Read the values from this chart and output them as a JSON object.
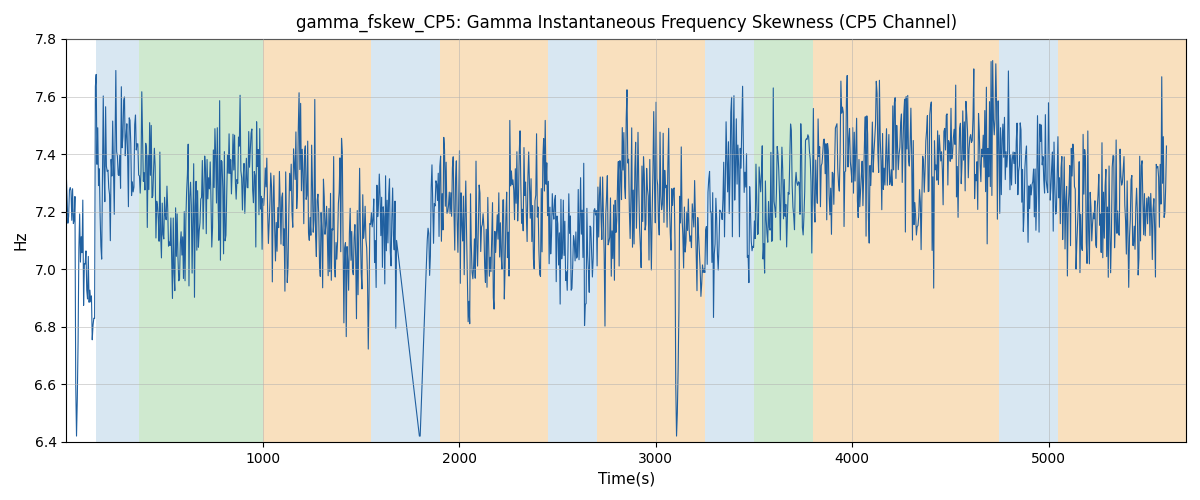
{
  "title": "gamma_fskew_CP5: Gamma Instantaneous Frequency Skewness (CP5 Channel)",
  "xlabel": "Time(s)",
  "ylabel": "Hz",
  "ylim": [
    6.4,
    7.8
  ],
  "xlim": [
    0,
    5700
  ],
  "line_color": "#2060a0",
  "line_width": 0.8,
  "bg_regions": [
    {
      "xmin": 150,
      "xmax": 370,
      "color": "#b8d4e8",
      "alpha": 0.55
    },
    {
      "xmin": 370,
      "xmax": 1000,
      "color": "#a8d8a8",
      "alpha": 0.55
    },
    {
      "xmin": 1000,
      "xmax": 1550,
      "color": "#f5c88a",
      "alpha": 0.55
    },
    {
      "xmin": 1550,
      "xmax": 1900,
      "color": "#b8d4e8",
      "alpha": 0.55
    },
    {
      "xmin": 1900,
      "xmax": 2450,
      "color": "#f5c88a",
      "alpha": 0.55
    },
    {
      "xmin": 2450,
      "xmax": 2700,
      "color": "#b8d4e8",
      "alpha": 0.55
    },
    {
      "xmin": 2700,
      "xmax": 3250,
      "color": "#f5c88a",
      "alpha": 0.55
    },
    {
      "xmin": 3250,
      "xmax": 3500,
      "color": "#b8d4e8",
      "alpha": 0.55
    },
    {
      "xmin": 3500,
      "xmax": 3800,
      "color": "#a8d8a8",
      "alpha": 0.55
    },
    {
      "xmin": 3800,
      "xmax": 4750,
      "color": "#f5c88a",
      "alpha": 0.55
    },
    {
      "xmin": 4750,
      "xmax": 5050,
      "color": "#b8d4e8",
      "alpha": 0.55
    },
    {
      "xmin": 5050,
      "xmax": 5700,
      "color": "#f5c88a",
      "alpha": 0.55
    }
  ],
  "grid_color": "#b0b0b0",
  "grid_alpha": 0.6,
  "fig_facecolor": "#ffffff",
  "title_fontsize": 12,
  "label_fontsize": 11,
  "tick_fontsize": 10
}
